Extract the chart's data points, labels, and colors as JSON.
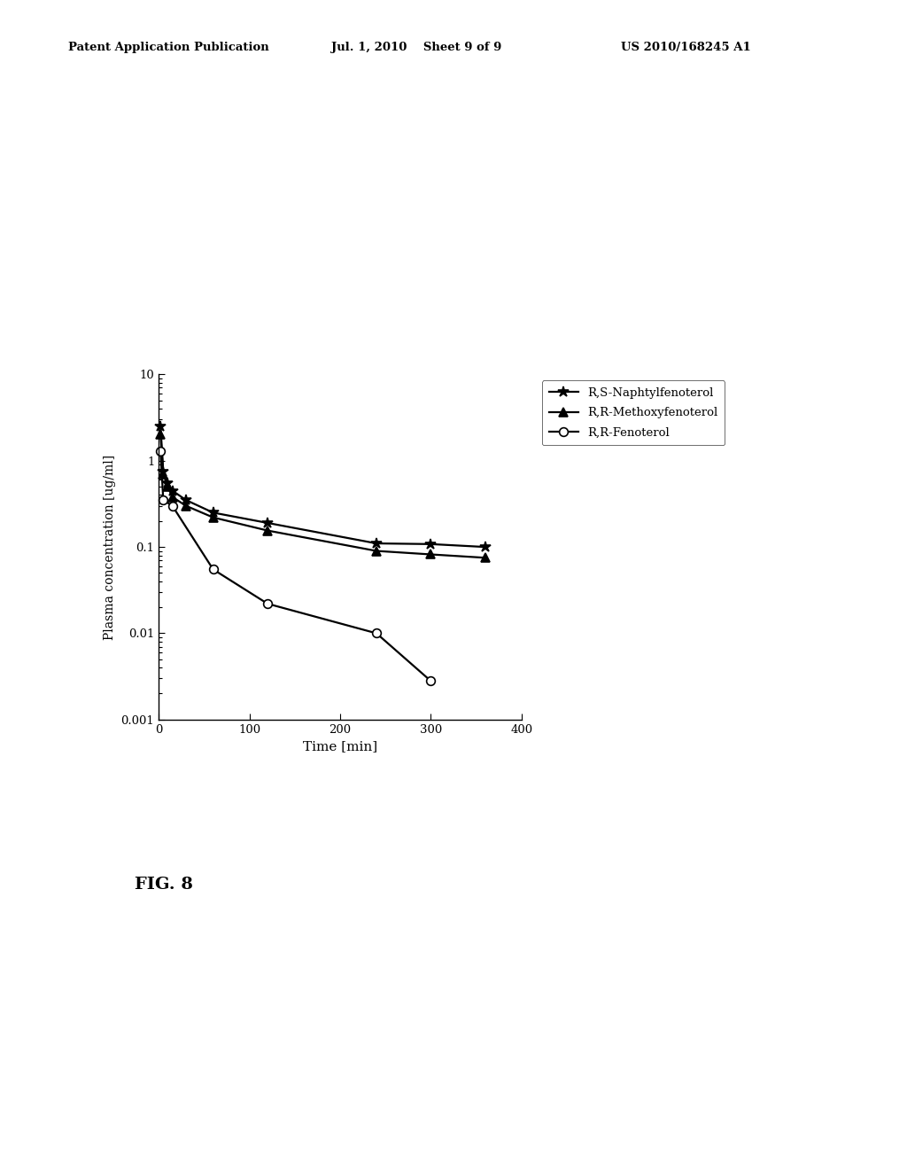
{
  "series": [
    {
      "label": "R,S-Naphtylfenoterol",
      "x": [
        2,
        5,
        10,
        15,
        30,
        60,
        120,
        240,
        300,
        360
      ],
      "y": [
        2.5,
        0.75,
        0.55,
        0.45,
        0.35,
        0.25,
        0.19,
        0.11,
        0.108,
        0.1
      ],
      "marker": "*",
      "color": "#000000",
      "markersize": 9,
      "linewidth": 1.6
    },
    {
      "label": "R,R-Methoxyfenoterol",
      "x": [
        2,
        5,
        10,
        15,
        30,
        60,
        120,
        240,
        300,
        360
      ],
      "y": [
        2.0,
        0.7,
        0.5,
        0.38,
        0.3,
        0.22,
        0.155,
        0.09,
        0.082,
        0.075
      ],
      "marker": "^",
      "color": "#000000",
      "markersize": 7,
      "linewidth": 1.6
    },
    {
      "label": "R,R-Fenoterol",
      "x": [
        2,
        5,
        15,
        60,
        120,
        240,
        300
      ],
      "y": [
        1.3,
        0.35,
        0.3,
        0.055,
        0.022,
        0.01,
        0.0028
      ],
      "marker": "o",
      "color": "#000000",
      "markersize": 7,
      "linewidth": 1.6,
      "markerfacecolor": "white"
    }
  ],
  "xlabel": "Time [min]",
  "ylabel": "Plasma concentration [ug/ml]",
  "xlim": [
    0,
    400
  ],
  "ylim_log": [
    0.001,
    10
  ],
  "xticks": [
    0,
    100,
    200,
    300,
    400
  ],
  "yticks": [
    0.001,
    0.01,
    0.1,
    1,
    10
  ],
  "ytick_labels": [
    "0.001",
    "0.01",
    "0.1",
    "1",
    "10"
  ],
  "fig_label": "FIG. 8",
  "header_left": "Patent Application Publication",
  "header_center": "Jul. 1, 2010    Sheet 9 of 9",
  "header_right": "US 2010/168245 A1",
  "background_color": "#ffffff"
}
